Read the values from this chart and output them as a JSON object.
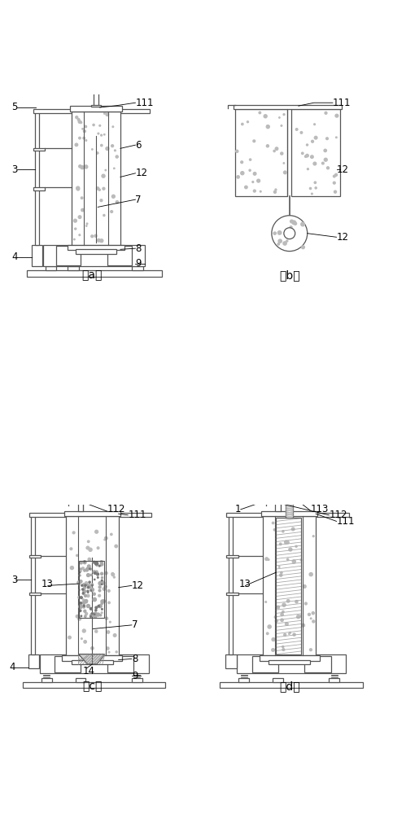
{
  "fig_labels": [
    "（a）",
    "（b）",
    "（c）",
    "（d）"
  ],
  "line_color": "#555555",
  "bg_color": "#ffffff",
  "caption_fontsize": 11,
  "label_fontsize": 8.5
}
